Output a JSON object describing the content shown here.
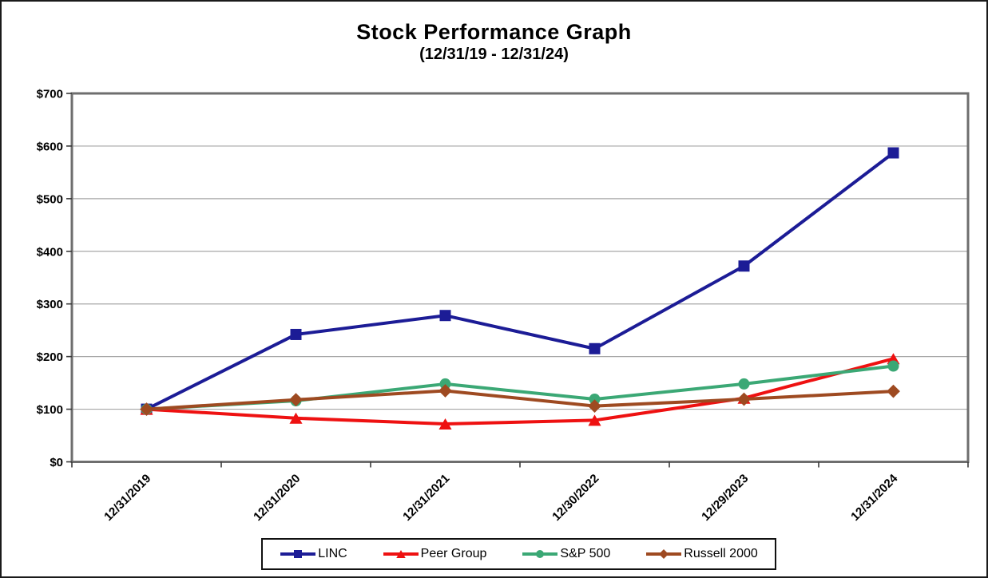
{
  "page": {
    "background": "#ffffff",
    "border_color": "#1a1a1a"
  },
  "chart_data": {
    "type": "line",
    "title": "Stock Performance Graph",
    "subtitle": "(12/31/19 - 12/31/24)",
    "categories": [
      "12/31/2019",
      "12/31/2020",
      "12/31/2021",
      "12/30/2022",
      "12/29/2023",
      "12/31/2024"
    ],
    "y_axis": {
      "min": 0,
      "max": 700,
      "step": 100,
      "tick_prefix": "$",
      "tick_labels": [
        "$0",
        "$100",
        "$200",
        "$300",
        "$400",
        "$500",
        "$600",
        "$700"
      ]
    },
    "series": [
      {
        "name": "LINC",
        "color": "#1c1c96",
        "marker": "square",
        "values": [
          100,
          242,
          278,
          215,
          372,
          587
        ]
      },
      {
        "name": "Peer Group",
        "color": "#ee1111",
        "marker": "triangle",
        "values": [
          100,
          83,
          72,
          79,
          121,
          196
        ]
      },
      {
        "name": "S&P 500",
        "color": "#3ba875",
        "marker": "circle",
        "values": [
          100,
          116,
          148,
          119,
          148,
          182
        ]
      },
      {
        "name": "Russell 2000",
        "color": "#9e4a21",
        "marker": "diamond",
        "values": [
          100,
          118,
          135,
          106,
          119,
          134
        ]
      }
    ],
    "grid": true,
    "gridline_color": "#a6a6a6",
    "plot_border_color": "#6e6e6e",
    "tick_color": "#3a3a3a",
    "legend_position": "bottom"
  }
}
